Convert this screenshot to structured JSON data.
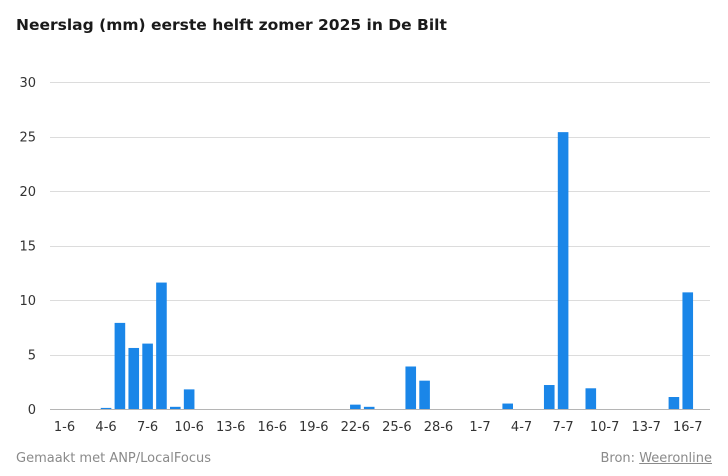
{
  "title": "Neerslag (mm) eerste helft zomer 2025 in De Bilt",
  "chart_data": {
    "type": "bar",
    "title": "Neerslag (mm) eerste helft zomer 2025 in De Bilt",
    "ylim": [
      0,
      30
    ],
    "yticks": [
      0,
      5,
      10,
      15,
      20,
      25,
      30
    ],
    "grid": true,
    "bar_color": "#1a86e8",
    "categories": [
      "1-6",
      "2-6",
      "3-6",
      "4-6",
      "5-6",
      "6-6",
      "7-6",
      "8-6",
      "9-6",
      "10-6",
      "11-6",
      "12-6",
      "13-6",
      "14-6",
      "15-6",
      "16-6",
      "17-6",
      "18-6",
      "19-6",
      "20-6",
      "21-6",
      "22-6",
      "23-6",
      "24-6",
      "25-6",
      "26-6",
      "27-6",
      "28-6",
      "29-6",
      "30-6",
      "1-7",
      "2-7",
      "3-7",
      "4-7",
      "5-7",
      "6-7",
      "7-7",
      "8-7",
      "9-7",
      "10-7",
      "11-7",
      "12-7",
      "13-7",
      "14-7",
      "15-7",
      "16-7"
    ],
    "values": [
      0,
      0,
      0,
      0.1,
      7.9,
      5.6,
      6.0,
      11.6,
      0.2,
      1.8,
      0,
      0,
      0,
      0,
      0,
      0,
      0,
      0,
      0,
      0,
      0,
      0.4,
      0.2,
      0,
      0,
      3.9,
      2.6,
      0,
      0,
      0,
      0,
      0,
      0.5,
      0,
      0,
      2.2,
      25.4,
      0,
      1.9,
      0,
      0,
      0,
      0,
      0,
      1.1,
      10.7
    ],
    "xtick_labels": [
      "1-6",
      "4-6",
      "7-6",
      "10-6",
      "13-6",
      "16-6",
      "19-6",
      "22-6",
      "25-6",
      "28-6",
      "1-7",
      "4-7",
      "7-7",
      "10-7",
      "13-7",
      "16-7"
    ]
  },
  "footer": {
    "made_with": "Gemaakt met ANP/LocalFocus",
    "source_prefix": "Bron:",
    "source_name": "Weeronline"
  }
}
